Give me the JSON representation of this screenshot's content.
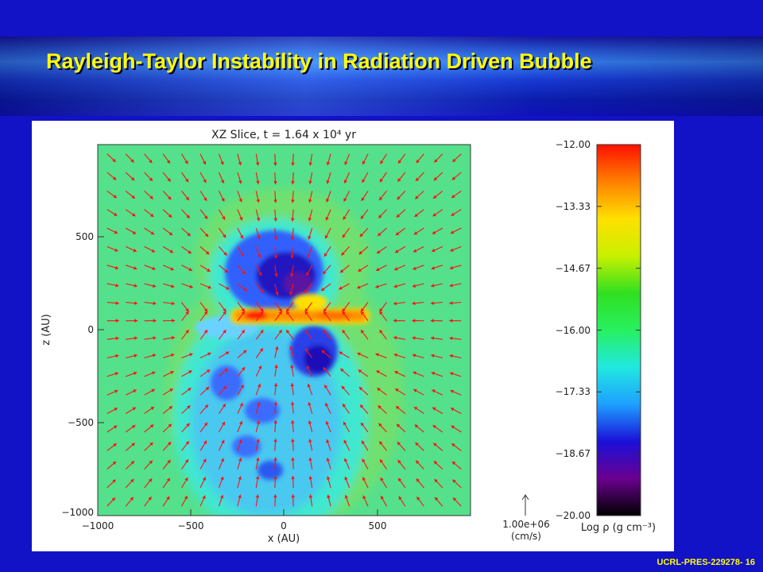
{
  "slide": {
    "title": "Rayleigh-Taylor Instability in Radiation Driven Bubble",
    "footer": "UCRL-PRES-229278-  16"
  },
  "chart_data": {
    "type": "heatmap",
    "title": "XZ Slice, t = 1.64 x 10⁴ yr",
    "xlabel": "x (AU)",
    "ylabel": "z (AU)",
    "xlim": [
      -1000,
      1000
    ],
    "ylim": [
      -1000,
      1000
    ],
    "x_ticks": [
      "−1000",
      "−500",
      "0",
      "500"
    ],
    "y_ticks": [
      "500",
      "0",
      "−500",
      "−1000"
    ],
    "vector_field": "velocity arrows (red)",
    "arrow_scale_label": "1.00e+06",
    "arrow_scale_unit": "(cm/s)",
    "colorbar": {
      "label": "Log ρ (g cm⁻³)",
      "ticks": [
        "−12.00",
        "−13.33",
        "−14.67",
        "−16.00",
        "−17.33",
        "−18.67",
        "−20.00"
      ],
      "range": [
        -20.0,
        -12.0
      ],
      "colors": [
        "#000000",
        "#6a0090",
        "#1a10d8",
        "#1ea0ff",
        "#20e8e0",
        "#28f060",
        "#30e020",
        "#c8f000",
        "#ffe000",
        "#ff8000",
        "#ff1000"
      ]
    },
    "colors": {
      "arrow": "#ff1010",
      "background_density": "#55e08c"
    }
  }
}
